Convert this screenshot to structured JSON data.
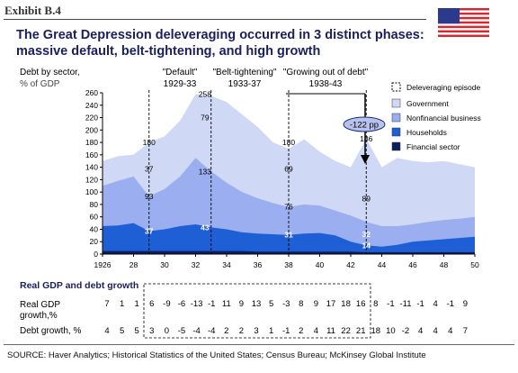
{
  "exhibit_label": "Exhibit B.4",
  "title_line1": "The Great Depression deleveraging occurred in 3 distinct phases:",
  "title_line2": "massive default, belt-tightening, and high growth",
  "source": "SOURCE: Haver Analytics; Historical Statistics of the United States; Census Bureau; McKinsey Global Institute",
  "icon": "us-flag-icon",
  "colors": {
    "government": "#cfd9f5",
    "nonfinancial": "#9aaef0",
    "households": "#1f5fd6",
    "financial": "#0d1e60",
    "title": "#1a1f5c"
  },
  "chart_data": {
    "type": "area",
    "ylabel_line1": "Debt by sector,",
    "ylabel_line2": "% of GDP",
    "ylim": [
      0,
      260
    ],
    "yticks": [
      0,
      20,
      40,
      60,
      80,
      100,
      120,
      140,
      160,
      180,
      200,
      220,
      240,
      260
    ],
    "xlim": [
      1926,
      1950
    ],
    "xticks": [
      "1926",
      "28",
      "30",
      "32",
      "34",
      "36",
      "38",
      "40",
      "42",
      "44",
      "46",
      "48",
      "50"
    ],
    "x": [
      1926,
      1927,
      1928,
      1929,
      1930,
      1931,
      1932,
      1933,
      1934,
      1935,
      1936,
      1937,
      1938,
      1939,
      1940,
      1941,
      1942,
      1943,
      1944,
      1945,
      1946,
      1947,
      1948,
      1949,
      1950
    ],
    "series": [
      {
        "name": "Financial sector",
        "values": [
          5,
          5,
          5,
          5,
          5,
          5,
          5,
          5,
          5,
          5,
          4,
          4,
          4,
          4,
          4,
          4,
          4,
          3,
          3,
          3,
          3,
          3,
          3,
          3,
          3
        ]
      },
      {
        "name": "Households",
        "values": [
          45,
          46,
          50,
          37,
          40,
          45,
          48,
          43,
          40,
          35,
          33,
          32,
          31,
          33,
          34,
          30,
          20,
          14,
          12,
          15,
          20,
          22,
          24,
          26,
          28
        ]
      },
      {
        "name": "Nonfinancial business",
        "values": [
          110,
          118,
          125,
          93,
          105,
          125,
          155,
          133,
          115,
          100,
          90,
          82,
          76,
          80,
          78,
          70,
          62,
          52,
          45,
          45,
          48,
          52,
          55,
          57,
          60
        ]
      },
      {
        "name": "Government",
        "values": [
          150,
          158,
          160,
          180,
          190,
          215,
          258,
          255,
          245,
          225,
          205,
          180,
          170,
          185,
          165,
          150,
          140,
          186,
          140,
          155,
          150,
          148,
          150,
          145,
          140
        ]
      }
    ],
    "annotations": [
      {
        "x": 1929,
        "y": 180,
        "text": "180"
      },
      {
        "x": 1929,
        "y": 93,
        "text": "93"
      },
      {
        "x": 1929,
        "y": 37,
        "text": "37"
      },
      {
        "x": 1929,
        "y": 137,
        "text": "37"
      },
      {
        "x": 1932.6,
        "y": 258,
        "text": "258"
      },
      {
        "x": 1932.6,
        "y": 220,
        "text": "79"
      },
      {
        "x": 1932.6,
        "y": 133,
        "text": "133"
      },
      {
        "x": 1932.6,
        "y": 43,
        "text": "43"
      },
      {
        "x": 1938,
        "y": 180,
        "text": "180"
      },
      {
        "x": 1938,
        "y": 137,
        "text": "69"
      },
      {
        "x": 1938,
        "y": 76,
        "text": "76"
      },
      {
        "x": 1938,
        "y": 31,
        "text": "31"
      },
      {
        "x": 1943,
        "y": 186,
        "text": "186"
      },
      {
        "x": 1943,
        "y": 89,
        "text": "89"
      },
      {
        "x": 1943,
        "y": 32,
        "text": "32"
      },
      {
        "x": 1943,
        "y": 14,
        "text": "14"
      }
    ],
    "phases": [
      {
        "label": "\"Default\"",
        "years": "1929-33",
        "start": 1929,
        "end": 1933
      },
      {
        "label": "\"Belt-tightening\"",
        "years": "1933-37",
        "start": 1933,
        "end": 1937
      },
      {
        "label": "\"Growing out of debt\"",
        "years": "1938-43",
        "start": 1938,
        "end": 1943
      }
    ],
    "callout": {
      "text": "-122 pp",
      "x": 1943
    },
    "legend": {
      "position": "top-right",
      "items": [
        "Deleveraging episode",
        "Government",
        "Nonfinancial business",
        "Households",
        "Financial sector"
      ]
    },
    "table": {
      "title": "Real GDP and debt growth",
      "rows": [
        {
          "label_line1": "Real GDP",
          "label_line2": "growth,%",
          "values": [
            "7",
            "1",
            "1",
            "6",
            "-9",
            "-6",
            "-13",
            "-1",
            "11",
            "9",
            "13",
            "5",
            "-3",
            "8",
            "9",
            "17",
            "18",
            "16",
            "8",
            "-1",
            "-11",
            "-1",
            "4",
            "-1",
            "9"
          ]
        },
        {
          "label_line1": "Debt growth, %",
          "values": [
            "4",
            "5",
            "5",
            "3",
            "0",
            "-5",
            "-4",
            "-4",
            "2",
            "2",
            "3",
            "1",
            "-1",
            "2",
            "4",
            "11",
            "22",
            "21",
            "18",
            "10",
            "-2",
            "4",
            "4",
            "4",
            "7"
          ]
        }
      ]
    }
  }
}
